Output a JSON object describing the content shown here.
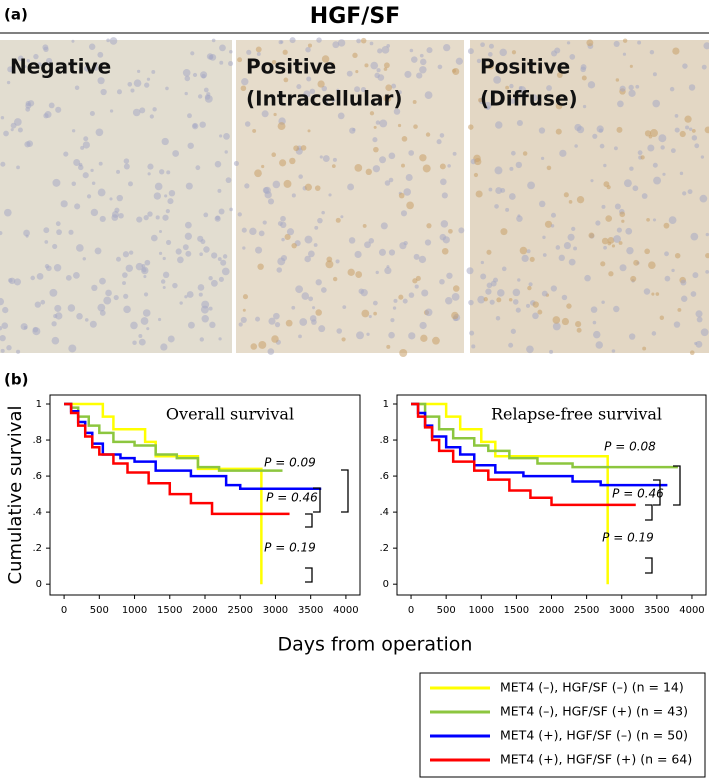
{
  "panel_a": {
    "label": "(a)",
    "title": "HGF/SF",
    "images": [
      {
        "lines": [
          "Negative"
        ]
      },
      {
        "lines": [
          "Positive",
          "(Intracellular)"
        ]
      },
      {
        "lines": [
          "Positive",
          "(Diffuse)"
        ]
      }
    ]
  },
  "panel_b": {
    "label": "(b)",
    "y_label": "Cumulative survival",
    "x_label": "Days from operation"
  },
  "chart_data": [
    {
      "type": "line",
      "step": true,
      "title": "Overall survival",
      "xlim": [
        -200,
        4200
      ],
      "ylim": [
        -0.06,
        1.05
      ],
      "xticks": [
        0,
        500,
        1000,
        1500,
        2000,
        2500,
        3000,
        3500,
        4000
      ],
      "yticks": [
        0,
        {
          "value": 0.2,
          "label": ".2"
        },
        {
          "value": 0.4,
          "label": ".4"
        },
        {
          "value": 0.6,
          "label": ".6"
        },
        {
          "value": 0.8,
          "label": ".8"
        },
        1
      ],
      "series": [
        {
          "name": "MET4 (–), HGF/SF (–) (n = 14)",
          "color": "#ffff00",
          "x": [
            0,
            550,
            700,
            1150,
            1300,
            1900,
            2800,
            2800
          ],
          "values": [
            1,
            0.93,
            0.86,
            0.79,
            0.71,
            0.64,
            0.64,
            0
          ]
        },
        {
          "name": "MET4 (–), HGF/SF (+) (n = 43)",
          "color": "#8cc63f",
          "x": [
            0,
            100,
            200,
            350,
            500,
            700,
            1000,
            1300,
            1600,
            1900,
            2200,
            3100
          ],
          "values": [
            1,
            0.98,
            0.93,
            0.88,
            0.84,
            0.79,
            0.77,
            0.72,
            0.7,
            0.65,
            0.63,
            0.63
          ]
        },
        {
          "name": "MET4 (+), HGF/SF (–) (n = 50)",
          "color": "#0000ff",
          "x": [
            0,
            100,
            200,
            300,
            400,
            550,
            800,
            1000,
            1300,
            1800,
            2300,
            2500,
            3650
          ],
          "values": [
            1,
            0.96,
            0.9,
            0.84,
            0.78,
            0.72,
            0.7,
            0.68,
            0.63,
            0.6,
            0.55,
            0.53,
            0.53
          ]
        },
        {
          "name": "MET4 (+), HGF/SF (+) (n = 64)",
          "color": "#ff0000",
          "x": [
            0,
            100,
            200,
            300,
            400,
            500,
            700,
            900,
            1200,
            1500,
            1800,
            2100,
            3200
          ],
          "values": [
            1,
            0.95,
            0.88,
            0.82,
            0.76,
            0.72,
            0.67,
            0.62,
            0.56,
            0.5,
            0.45,
            0.39,
            0.39
          ]
        }
      ],
      "annotations": [
        "P = 0.09",
        "P = 0.46",
        "P = 0.19"
      ]
    },
    {
      "type": "line",
      "step": true,
      "title": "Relapse-free survival",
      "xlim": [
        -200,
        4200
      ],
      "ylim": [
        -0.06,
        1.05
      ],
      "xticks": [
        0,
        500,
        1000,
        1500,
        2000,
        2500,
        3000,
        3500,
        4000
      ],
      "yticks": [
        0,
        {
          "value": 0.2,
          "label": ".2"
        },
        {
          "value": 0.4,
          "label": ".4"
        },
        {
          "value": 0.6,
          "label": ".6"
        },
        {
          "value": 0.8,
          "label": ".8"
        },
        1
      ],
      "series": [
        {
          "name": "MET4 (–), HGF/SF (–) (n = 14)",
          "color": "#ffff00",
          "x": [
            0,
            500,
            700,
            1000,
            1200,
            2800,
            2800
          ],
          "values": [
            1,
            0.93,
            0.86,
            0.79,
            0.71,
            0.71,
            0
          ]
        },
        {
          "name": "MET4 (–), HGF/SF (+) (n = 43)",
          "color": "#8cc63f",
          "x": [
            0,
            200,
            400,
            600,
            900,
            1100,
            1400,
            1800,
            2300,
            3800
          ],
          "values": [
            1,
            0.93,
            0.86,
            0.81,
            0.77,
            0.74,
            0.7,
            0.67,
            0.65,
            0.65
          ]
        },
        {
          "name": "MET4 (+), HGF/SF (–) (n = 50)",
          "color": "#0000ff",
          "x": [
            0,
            100,
            200,
            300,
            500,
            700,
            900,
            1200,
            1600,
            2300,
            2700,
            3650
          ],
          "values": [
            1,
            0.95,
            0.88,
            0.82,
            0.76,
            0.72,
            0.66,
            0.62,
            0.6,
            0.57,
            0.55,
            0.55
          ]
        },
        {
          "name": "MET4 (+), HGF/SF (+) (n = 64)",
          "color": "#ff0000",
          "x": [
            0,
            100,
            200,
            300,
            400,
            600,
            900,
            1100,
            1400,
            1700,
            2000,
            3200
          ],
          "values": [
            1,
            0.93,
            0.87,
            0.8,
            0.74,
            0.68,
            0.63,
            0.58,
            0.52,
            0.48,
            0.44,
            0.44
          ]
        }
      ],
      "annotations": [
        "P = 0.08",
        "P = 0.46",
        "P = 0.19"
      ]
    }
  ]
}
